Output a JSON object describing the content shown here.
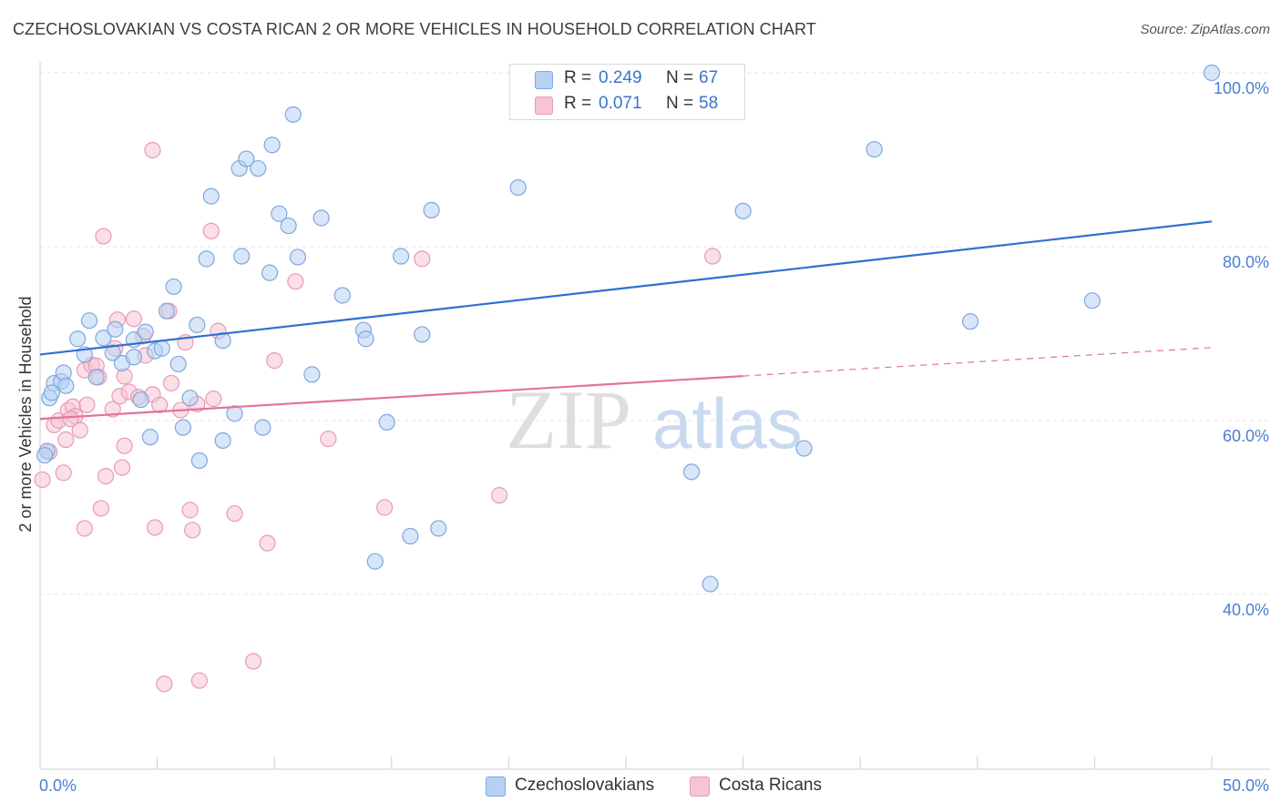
{
  "title": "CZECHOSLOVAKIAN VS COSTA RICAN 2 OR MORE VEHICLES IN HOUSEHOLD CORRELATION CHART",
  "source": "Source: ZipAtlas.com",
  "watermark": {
    "zip": "ZIP",
    "atlas": "atlas"
  },
  "legend": {
    "rows": [
      {
        "r_label": "R =",
        "r_value": "0.249",
        "n_label": "N =",
        "n_value": "67"
      },
      {
        "r_label": "R =",
        "r_value": "0.071",
        "n_label": "N =",
        "n_value": "58"
      }
    ]
  },
  "bottom_legend": [
    "Czechoslovakians",
    "Costa Ricans"
  ],
  "colors": {
    "blue_fill": "#b7d1f3",
    "blue_stroke": "#7fa7de",
    "blue_line": "#2f6fcf",
    "pink_fill": "#f6c4d4",
    "pink_stroke": "#e99ab4",
    "pink_line": "#e2739a",
    "tick_text": "#4a7fd0",
    "grid": "#e3e3e3"
  },
  "chart_data": {
    "type": "scatter",
    "title": "CZECHOSLOVAKIAN VS COSTA RICAN 2 OR MORE VEHICLES IN HOUSEHOLD CORRELATION CHART",
    "xlabel": "",
    "ylabel": "2 or more Vehicles in Household",
    "xlim": [
      0,
      50
    ],
    "ylim": [
      20,
      102
    ],
    "x_tick_labels": [
      "0.0%",
      "50.0%"
    ],
    "y_ticks": [
      40,
      60,
      80,
      100
    ],
    "y_tick_labels": [
      "40.0%",
      "60.0%",
      "80.0%",
      "100.0%"
    ],
    "grid": true,
    "legend_position": "top-center",
    "series": [
      {
        "name": "Czechoslovakians",
        "r": 0.249,
        "n": 67,
        "trend": {
          "x": [
            0,
            50
          ],
          "y": [
            67.6,
            82.9
          ],
          "dashed_from": null
        },
        "points": [
          [
            0.3,
            56.5
          ],
          [
            0.4,
            62.6
          ],
          [
            0.6,
            64.3
          ],
          [
            0.9,
            64.5
          ],
          [
            1.0,
            65.5
          ],
          [
            1.1,
            64.0
          ],
          [
            1.6,
            69.4
          ],
          [
            1.9,
            67.6
          ],
          [
            2.1,
            71.5
          ],
          [
            2.4,
            65.0
          ],
          [
            2.7,
            69.5
          ],
          [
            3.1,
            67.8
          ],
          [
            3.2,
            70.5
          ],
          [
            3.5,
            66.6
          ],
          [
            4.0,
            69.3
          ],
          [
            4.0,
            67.3
          ],
          [
            4.3,
            62.4
          ],
          [
            4.5,
            70.2
          ],
          [
            4.7,
            58.1
          ],
          [
            4.9,
            68.0
          ],
          [
            5.2,
            68.3
          ],
          [
            5.4,
            72.6
          ],
          [
            5.7,
            75.4
          ],
          [
            5.9,
            66.5
          ],
          [
            6.1,
            59.2
          ],
          [
            6.4,
            62.6
          ],
          [
            6.7,
            71.0
          ],
          [
            6.8,
            55.4
          ],
          [
            7.1,
            78.6
          ],
          [
            7.3,
            85.8
          ],
          [
            7.8,
            57.7
          ],
          [
            7.8,
            69.2
          ],
          [
            8.3,
            60.8
          ],
          [
            8.5,
            89.0
          ],
          [
            8.6,
            78.9
          ],
          [
            8.8,
            90.1
          ],
          [
            9.3,
            89.0
          ],
          [
            9.5,
            59.2
          ],
          [
            9.8,
            77.0
          ],
          [
            9.9,
            91.7
          ],
          [
            10.2,
            83.8
          ],
          [
            10.6,
            82.4
          ],
          [
            10.8,
            95.2
          ],
          [
            11.0,
            78.8
          ],
          [
            11.6,
            65.3
          ],
          [
            12.0,
            83.3
          ],
          [
            12.9,
            74.4
          ],
          [
            13.8,
            70.4
          ],
          [
            13.9,
            69.4
          ],
          [
            14.3,
            43.8
          ],
          [
            14.8,
            59.8
          ],
          [
            15.4,
            78.9
          ],
          [
            15.8,
            46.7
          ],
          [
            16.3,
            69.9
          ],
          [
            16.7,
            84.2
          ],
          [
            17.0,
            47.6
          ],
          [
            20.4,
            86.8
          ],
          [
            27.8,
            54.1
          ],
          [
            28.6,
            41.2
          ],
          [
            30.0,
            84.1
          ],
          [
            32.6,
            56.8
          ],
          [
            35.6,
            91.2
          ],
          [
            39.7,
            71.4
          ],
          [
            44.9,
            73.8
          ],
          [
            50.0,
            100.0
          ],
          [
            0.2,
            56.0
          ],
          [
            0.5,
            63.2
          ]
        ]
      },
      {
        "name": "Costa Ricans",
        "r": 0.071,
        "n": 58,
        "trend": {
          "x": [
            0,
            50
          ],
          "y": [
            60.2,
            68.4
          ],
          "dashed_from": 30
        },
        "points": [
          [
            0.1,
            53.2
          ],
          [
            0.4,
            56.4
          ],
          [
            0.6,
            59.5
          ],
          [
            0.8,
            60.0
          ],
          [
            1.0,
            54.0
          ],
          [
            1.1,
            57.8
          ],
          [
            1.2,
            61.2
          ],
          [
            1.4,
            61.6
          ],
          [
            1.5,
            60.5
          ],
          [
            1.7,
            58.9
          ],
          [
            1.9,
            65.8
          ],
          [
            1.9,
            47.6
          ],
          [
            2.0,
            61.8
          ],
          [
            2.2,
            66.4
          ],
          [
            2.4,
            66.3
          ],
          [
            2.5,
            65.0
          ],
          [
            2.6,
            49.9
          ],
          [
            2.7,
            81.2
          ],
          [
            2.8,
            53.6
          ],
          [
            3.1,
            61.3
          ],
          [
            3.2,
            68.3
          ],
          [
            3.3,
            71.6
          ],
          [
            3.4,
            62.8
          ],
          [
            3.5,
            54.6
          ],
          [
            3.6,
            57.1
          ],
          [
            3.8,
            63.3
          ],
          [
            4.0,
            71.7
          ],
          [
            4.2,
            62.7
          ],
          [
            4.4,
            69.7
          ],
          [
            4.5,
            67.5
          ],
          [
            4.8,
            63.0
          ],
          [
            4.8,
            91.1
          ],
          [
            4.9,
            47.7
          ],
          [
            5.1,
            61.8
          ],
          [
            5.3,
            29.7
          ],
          [
            5.5,
            72.6
          ],
          [
            5.6,
            64.3
          ],
          [
            6.0,
            61.2
          ],
          [
            6.2,
            69.0
          ],
          [
            6.4,
            49.7
          ],
          [
            6.5,
            47.4
          ],
          [
            6.7,
            61.9
          ],
          [
            6.8,
            30.1
          ],
          [
            7.3,
            81.8
          ],
          [
            7.4,
            62.5
          ],
          [
            7.6,
            70.3
          ],
          [
            8.3,
            49.3
          ],
          [
            9.1,
            32.3
          ],
          [
            9.7,
            45.9
          ],
          [
            10.0,
            66.9
          ],
          [
            10.9,
            76.0
          ],
          [
            12.3,
            57.9
          ],
          [
            14.7,
            50.0
          ],
          [
            16.3,
            78.6
          ],
          [
            19.6,
            51.4
          ],
          [
            28.7,
            78.9
          ],
          [
            3.6,
            65.1
          ],
          [
            1.3,
            60.2
          ]
        ]
      }
    ]
  }
}
